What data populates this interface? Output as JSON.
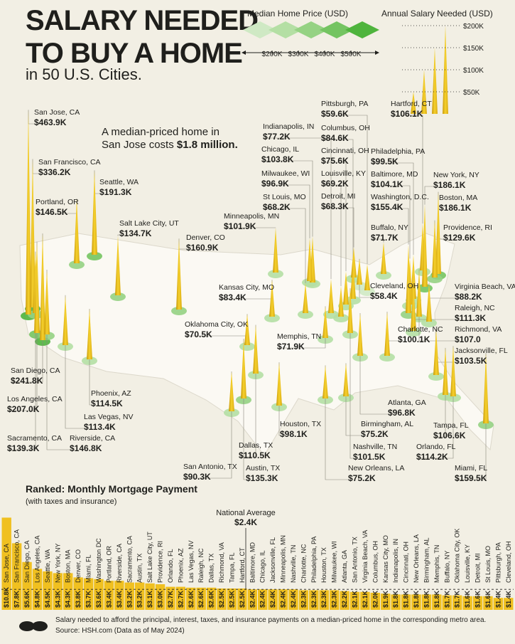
{
  "header": {
    "title_lines": [
      "SALARY NEEDED",
      "TO BUY A HOME"
    ],
    "subtitle": "in 50 U.S. Cities."
  },
  "annotation": {
    "lines": [
      "A median-priced home in",
      "San Jose costs"
    ],
    "highlight": "$1.8 million."
  },
  "chart_data": [
    {
      "type": "spike-map",
      "title": "Annual Salary Needed (USD)",
      "price_legend": {
        "title": "Median Home Price (USD)",
        "xticks": [
          {
            "value": 200,
            "label": "$200K"
          },
          {
            "value": 300,
            "label": "$300K"
          },
          {
            "value": 400,
            "label": "$400K"
          },
          {
            "value": 500,
            "label": "$500K"
          }
        ]
      },
      "ylim": [
        0,
        200
      ],
      "yticks": [
        {
          "value": 200,
          "label": "$200K"
        },
        {
          "value": 150,
          "label": "$150K"
        },
        {
          "value": 100,
          "label": "$100K"
        },
        {
          "value": 50,
          "label": "$50K"
        }
      ],
      "color": "#f0c020",
      "categories": [
        "San Jose, CA",
        "San Francisco, CA",
        "Seattle, WA",
        "Portland, OR",
        "Salt Lake City, UT",
        "Denver, CO",
        "Sacramento, CA",
        "San Diego, CA",
        "Los Angeles, CA",
        "Riverside, CA",
        "Phoenix, AZ",
        "Las Vegas, NV",
        "Minneapolis, MN",
        "Kansas City, MO",
        "Oklahoma City, OK",
        "Dallas, TX",
        "Houston, TX",
        "Austin, TX",
        "San Antonio, TX",
        "Memphis, TN",
        "Indianapolis, IN",
        "Chicago, IL",
        "Milwaukee, WI",
        "St Louis, MO",
        "Pittsburgh, PA",
        "Columbus, OH",
        "Cincinnati, OH",
        "Louisville, KY",
        "Detroit, MI",
        "Cleveland, OH",
        "Hartford, CT",
        "Philadelphia, PA",
        "Baltimore, MD",
        "Washington, D.C.",
        "Buffalo, NY",
        "New York, NY",
        "Boston, MA",
        "Providence, RI",
        "Virginia Beach, VA",
        "Raleigh, NC",
        "Richmond, VA",
        "Jacksonville, FL",
        "Charlotte, NC",
        "Atlanta, GA",
        "Birmingham, AL",
        "Tampa, FL",
        "Orlando, FL",
        "Miami, FL",
        "Nashville, TN",
        "New Orleans, LA"
      ],
      "values": [
        463.9,
        336.2,
        191.3,
        146.5,
        134.7,
        160.9,
        139.3,
        241.8,
        207.0,
        146.8,
        114.5,
        113.4,
        101.9,
        83.4,
        70.5,
        110.5,
        98.1,
        135.3,
        90.3,
        71.9,
        77.2,
        103.8,
        96.9,
        68.2,
        59.6,
        84.6,
        75.6,
        69.2,
        68.3,
        58.4,
        106.1,
        99.5,
        104.1,
        155.4,
        71.7,
        186.1,
        186.1,
        129.6,
        88.2,
        111.3,
        107.0,
        103.5,
        100.1,
        96.8,
        75.2,
        106.6,
        114.2,
        159.5,
        101.5,
        75.2
      ],
      "value_labels": [
        "$463.9K",
        "$336.2K",
        "$191.3K",
        "$146.5K",
        "$134.7K",
        "$160.9K",
        "$139.3K",
        "$241.8K",
        "$207.0K",
        "$146.8K",
        "$114.5K",
        "$113.4K",
        "$101.9K",
        "$83.4K",
        "$70.5K",
        "$110.5K",
        "$98.1K",
        "$135.3K",
        "$90.3K",
        "$71.9K",
        "$77.2K",
        "$103.8K",
        "$96.9K",
        "$68.2K",
        "$59.6K",
        "$84.6K",
        "$75.6K",
        "$69.2K",
        "$68.3K",
        "$58.4K",
        "$106.1K",
        "$99.5K",
        "$104.1K",
        "$155.4K",
        "$71.7K",
        "$186.1K",
        "$186.1K",
        "$129.6K",
        "$88.2K",
        "$111.3K",
        "$107.0",
        "$103.5K",
        "$100.1K",
        "$96.8K",
        "$75.2K",
        "$106.6K",
        "$114.2K",
        "$159.5K",
        "$101.5K",
        "$75.2K"
      ]
    },
    {
      "type": "bar",
      "title": "Ranked: Monthly Mortgage Payment",
      "subtitle": "(with taxes and insurance)",
      "color": "#f0c020",
      "categories": [
        "San Jose, CA",
        "San Francisco, CA",
        "San Diego, CA",
        "Los Angeles, CA",
        "Seattle, WA",
        "New York, NY",
        "Boston, MA",
        "Denver, CO",
        "Miami, FL",
        "Washington DC",
        "Portland, OR",
        "Riverside, CA",
        "Sacramento, CA",
        "Austin, TX",
        "Salt Lake City, UT",
        "Providence, RI",
        "Orlando, FL",
        "Phoenix, AZ",
        "Las Vegas, NV",
        "Raleigh, NC",
        "Dallas, TX",
        "Richmond, VA",
        "Tampa, FL",
        "Hartford, CT",
        "Baltimore, MD",
        "Chicago, IL",
        "Jacksonville, FL",
        "Minneapolis, MN",
        "Nashville, TN",
        "Charlotte, NC",
        "Philadelphia, PA",
        "Houston, TX",
        "Milwaukee, WI",
        "Atlanta, GA",
        "San Antonio, TX",
        "Virginia Beach, VA",
        "Columbus, OH",
        "Kansas City, MO",
        "Indianapolis, IN",
        "Cincinnati, OH",
        "New Orleans, LA",
        "Birmingham, AL",
        "Memphis, TN",
        "Buffalo, NY",
        "Oklahoma City, OK",
        "Louisville, KY",
        "Detroit, MI",
        "St Louis, MO",
        "Pittsburgh, PA",
        "Cleveland, OH"
      ],
      "values": [
        10.8,
        7.8,
        5.6,
        4.8,
        4.5,
        4.3,
        4.3,
        3.8,
        3.7,
        3.6,
        3.4,
        3.4,
        3.2,
        3.2,
        3.1,
        3.0,
        2.7,
        2.7,
        2.6,
        2.6,
        2.6,
        2.5,
        2.5,
        2.5,
        2.4,
        2.4,
        2.4,
        2.4,
        2.4,
        2.3,
        2.3,
        2.3,
        2.3,
        2.2,
        2.1,
        2.1,
        2.0,
        1.9,
        1.8,
        1.8,
        1.8,
        1.8,
        1.8,
        1.7,
        1.7,
        1.6,
        1.6,
        1.6,
        1.4,
        1.4
      ],
      "value_labels": [
        "$10.8K",
        "$7.8K",
        "$5.6K",
        "$4.8K",
        "$4.5K",
        "$4.3K",
        "$4.3K",
        "$3.8K",
        "$3.7K",
        "$3.6K",
        "$3.4K",
        "$3.4K",
        "$3.2K",
        "$3.2K",
        "$3.1K",
        "$3.0K",
        "$2.7K",
        "$2.7K",
        "$2.6K",
        "$2.6K",
        "$2.6K",
        "$2.5K",
        "$2.5K",
        "$2.5K",
        "$2.4K",
        "$2.4K",
        "$2.4K",
        "$2.4K",
        "$2.4K",
        "$2.3K",
        "$2.3K",
        "$2.3K",
        "$2.3K",
        "$2.2K",
        "$2.1K",
        "$2.1K",
        "$2.0K",
        "$1.9K",
        "$1.8K",
        "$1.8K",
        "$1.8K",
        "$1.8K",
        "$1.8K",
        "$1.7K",
        "$1.7K",
        "$1.6K",
        "$1.6K",
        "$1.6K",
        "$1.4K",
        "$1.4K"
      ],
      "reference": {
        "label": "National Average",
        "value": 2.4,
        "value_label": "$2.4K"
      }
    }
  ],
  "footer": {
    "note": "Salary needed to afford the principal, interest, taxes, and insurance payments on a median-priced home in the corresponding metro area.",
    "source": "Source: HSH.com (Data as of May 2024)"
  }
}
